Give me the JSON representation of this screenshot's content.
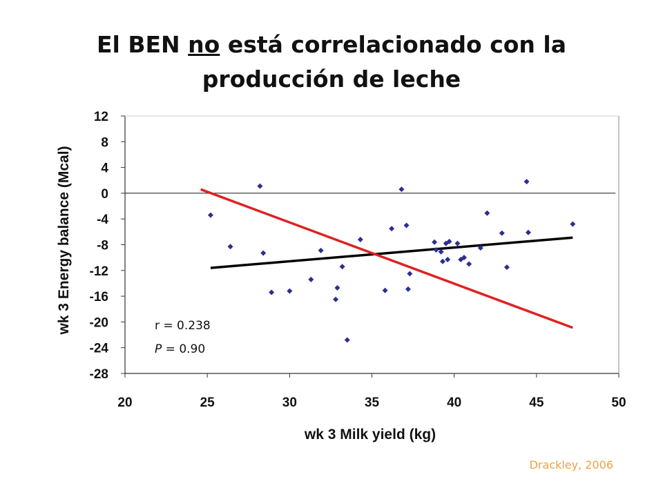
{
  "title": {
    "part1": "El BEN ",
    "underlined": "no",
    "part2": " está correlacionado con la",
    "line2": "producción de leche"
  },
  "credit": "Drackley, 2006",
  "chart_data": {
    "type": "scatter",
    "xlabel": "wk 3 Milk yield (kg)",
    "ylabel": "wk 3 Energy balance (Mcal)",
    "xlim": [
      20,
      50
    ],
    "ylim": [
      -28,
      12
    ],
    "xticks": [
      20,
      25,
      30,
      35,
      40,
      45,
      50
    ],
    "yticks": [
      12,
      8,
      4,
      0,
      -4,
      -8,
      -12,
      -16,
      -20,
      -24,
      -28
    ],
    "grid": false,
    "zero_line": 0,
    "stats": {
      "r_label": "r =  0.238",
      "p_label_italic": "P",
      "p_label_rest": " = 0.90"
    },
    "points": [
      [
        25.2,
        -3.4
      ],
      [
        26.4,
        -8.3
      ],
      [
        28.2,
        1.1
      ],
      [
        28.4,
        -9.3
      ],
      [
        28.9,
        -15.4
      ],
      [
        30.0,
        -15.2
      ],
      [
        31.3,
        -13.4
      ],
      [
        31.9,
        -8.9
      ],
      [
        32.8,
        -16.5
      ],
      [
        32.9,
        -14.7
      ],
      [
        33.2,
        -11.4
      ],
      [
        33.5,
        -22.8
      ],
      [
        34.3,
        -7.2
      ],
      [
        35.8,
        -15.1
      ],
      [
        36.2,
        -5.5
      ],
      [
        36.8,
        0.6
      ],
      [
        37.1,
        -5.0
      ],
      [
        37.2,
        -14.9
      ],
      [
        37.3,
        -12.5
      ],
      [
        38.8,
        -7.6
      ],
      [
        38.9,
        -8.8
      ],
      [
        39.2,
        -9.1
      ],
      [
        39.3,
        -10.6
      ],
      [
        39.5,
        -7.8
      ],
      [
        39.6,
        -10.3
      ],
      [
        39.7,
        -7.5
      ],
      [
        40.2,
        -7.8
      ],
      [
        40.4,
        -10.3
      ],
      [
        40.6,
        -10.0
      ],
      [
        40.9,
        -11.0
      ],
      [
        41.6,
        -8.5
      ],
      [
        42.0,
        -3.1
      ],
      [
        42.9,
        -6.2
      ],
      [
        43.2,
        -11.5
      ],
      [
        44.4,
        1.8
      ],
      [
        44.5,
        -6.1
      ],
      [
        47.2,
        -4.8
      ]
    ],
    "series": [
      {
        "values": [
          [
            25.2,
            -11.6
          ],
          [
            47.2,
            -6.9
          ]
        ],
        "color": "#000000"
      },
      {
        "values": [
          [
            24.6,
            0.6
          ],
          [
            47.2,
            -20.9
          ]
        ],
        "color": "#e02020"
      }
    ],
    "marker_color": "#2b2f8f"
  }
}
